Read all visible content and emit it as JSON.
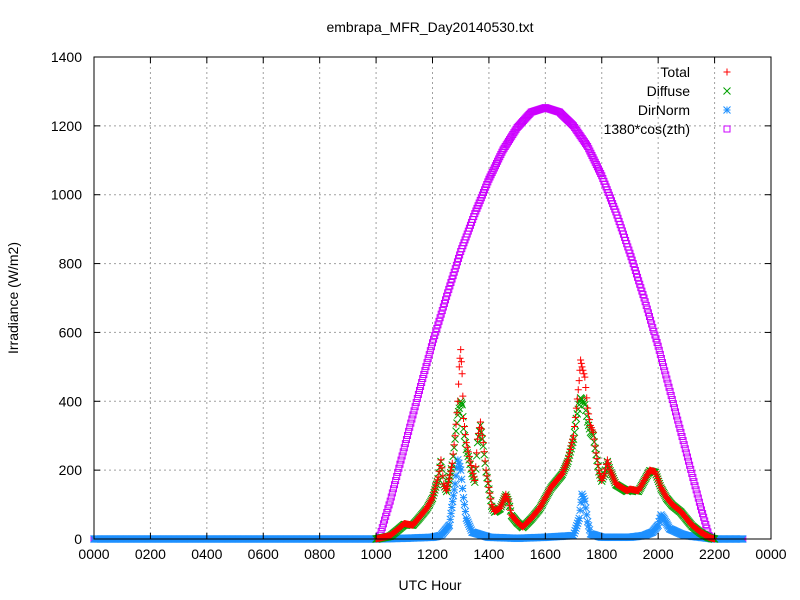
{
  "chart_data": {
    "type": "scatter",
    "title": "embrapa_MFR_Day20140530.txt",
    "xlabel": "UTC Hour",
    "ylabel": "Irradiance (W/m2)",
    "xlim": [
      0,
      2400
    ],
    "ylim": [
      0,
      1400
    ],
    "x_ticks": [
      "0000",
      "0200",
      "0400",
      "0600",
      "0800",
      "1000",
      "1200",
      "1400",
      "1600",
      "1800",
      "2000",
      "2200",
      "0000"
    ],
    "y_ticks": [
      "0",
      "200",
      "400",
      "600",
      "800",
      "1000",
      "1200",
      "1400"
    ],
    "grid": true,
    "legend_position": "top-right",
    "series": [
      {
        "name": "Total",
        "marker": "plus",
        "color": "#ff0000",
        "points": [
          [
            1000,
            0
          ],
          [
            1050,
            10
          ],
          [
            1080,
            30
          ],
          [
            1100,
            45
          ],
          [
            1130,
            40
          ],
          [
            1150,
            60
          ],
          [
            1180,
            90
          ],
          [
            1200,
            120
          ],
          [
            1220,
            180
          ],
          [
            1230,
            230
          ],
          [
            1240,
            160
          ],
          [
            1250,
            140
          ],
          [
            1270,
            220
          ],
          [
            1280,
            300
          ],
          [
            1290,
            400
          ],
          [
            1295,
            500
          ],
          [
            1300,
            550
          ],
          [
            1305,
            480
          ],
          [
            1310,
            350
          ],
          [
            1320,
            280
          ],
          [
            1330,
            240
          ],
          [
            1340,
            200
          ],
          [
            1350,
            170
          ],
          [
            1360,
            290
          ],
          [
            1370,
            340
          ],
          [
            1380,
            280
          ],
          [
            1390,
            200
          ],
          [
            1400,
            150
          ],
          [
            1410,
            100
          ],
          [
            1420,
            80
          ],
          [
            1440,
            90
          ],
          [
            1460,
            130
          ],
          [
            1470,
            110
          ],
          [
            1480,
            70
          ],
          [
            1500,
            50
          ],
          [
            1520,
            35
          ],
          [
            1550,
            60
          ],
          [
            1580,
            90
          ],
          [
            1600,
            120
          ],
          [
            1620,
            150
          ],
          [
            1640,
            170
          ],
          [
            1660,
            190
          ],
          [
            1680,
            230
          ],
          [
            1700,
            300
          ],
          [
            1710,
            380
          ],
          [
            1720,
            460
          ],
          [
            1725,
            520
          ],
          [
            1730,
            500
          ],
          [
            1740,
            470
          ],
          [
            1750,
            380
          ],
          [
            1760,
            330
          ],
          [
            1770,
            310
          ],
          [
            1780,
            250
          ],
          [
            1790,
            200
          ],
          [
            1800,
            170
          ],
          [
            1810,
            190
          ],
          [
            1820,
            230
          ],
          [
            1830,
            200
          ],
          [
            1850,
            160
          ],
          [
            1870,
            150
          ],
          [
            1890,
            140
          ],
          [
            1900,
            145
          ],
          [
            1930,
            140
          ],
          [
            1950,
            170
          ],
          [
            1970,
            200
          ],
          [
            1990,
            195
          ],
          [
            2010,
            150
          ],
          [
            2030,
            120
          ],
          [
            2050,
            100
          ],
          [
            2080,
            80
          ],
          [
            2100,
            60
          ],
          [
            2120,
            40
          ],
          [
            2150,
            20
          ],
          [
            2180,
            5
          ],
          [
            2200,
            0
          ]
        ]
      },
      {
        "name": "Diffuse",
        "marker": "cross",
        "color": "#00a000",
        "points": [
          [
            1000,
            0
          ],
          [
            1050,
            8
          ],
          [
            1080,
            28
          ],
          [
            1100,
            42
          ],
          [
            1130,
            40
          ],
          [
            1150,
            58
          ],
          [
            1180,
            88
          ],
          [
            1200,
            118
          ],
          [
            1220,
            175
          ],
          [
            1230,
            225
          ],
          [
            1240,
            158
          ],
          [
            1250,
            138
          ],
          [
            1270,
            215
          ],
          [
            1280,
            290
          ],
          [
            1290,
            360
          ],
          [
            1295,
            380
          ],
          [
            1300,
            400
          ],
          [
            1305,
            390
          ],
          [
            1310,
            320
          ],
          [
            1320,
            260
          ],
          [
            1330,
            230
          ],
          [
            1340,
            190
          ],
          [
            1350,
            165
          ],
          [
            1360,
            280
          ],
          [
            1370,
            330
          ],
          [
            1380,
            270
          ],
          [
            1390,
            195
          ],
          [
            1400,
            145
          ],
          [
            1410,
            95
          ],
          [
            1420,
            78
          ],
          [
            1440,
            88
          ],
          [
            1460,
            128
          ],
          [
            1470,
            108
          ],
          [
            1480,
            68
          ],
          [
            1500,
            48
          ],
          [
            1520,
            33
          ],
          [
            1550,
            58
          ],
          [
            1580,
            88
          ],
          [
            1600,
            118
          ],
          [
            1620,
            148
          ],
          [
            1640,
            168
          ],
          [
            1660,
            188
          ],
          [
            1680,
            225
          ],
          [
            1700,
            290
          ],
          [
            1710,
            350
          ],
          [
            1720,
            390
          ],
          [
            1725,
            410
          ],
          [
            1730,
            405
          ],
          [
            1740,
            390
          ],
          [
            1750,
            340
          ],
          [
            1760,
            310
          ],
          [
            1770,
            300
          ],
          [
            1780,
            245
          ],
          [
            1790,
            195
          ],
          [
            1800,
            168
          ],
          [
            1810,
            188
          ],
          [
            1820,
            225
          ],
          [
            1830,
            198
          ],
          [
            1850,
            158
          ],
          [
            1870,
            148
          ],
          [
            1890,
            138
          ],
          [
            1900,
            143
          ],
          [
            1930,
            138
          ],
          [
            1950,
            168
          ],
          [
            1970,
            198
          ],
          [
            1990,
            193
          ],
          [
            2010,
            148
          ],
          [
            2030,
            118
          ],
          [
            2050,
            98
          ],
          [
            2080,
            78
          ],
          [
            2100,
            58
          ],
          [
            2120,
            38
          ],
          [
            2150,
            18
          ],
          [
            2180,
            4
          ],
          [
            2200,
            0
          ]
        ]
      },
      {
        "name": "DirNorm",
        "marker": "star",
        "color": "#1e90ff",
        "points": [
          [
            0,
            0
          ],
          [
            200,
            0
          ],
          [
            400,
            0
          ],
          [
            600,
            0
          ],
          [
            800,
            0
          ],
          [
            1000,
            0
          ],
          [
            1100,
            2
          ],
          [
            1200,
            5
          ],
          [
            1230,
            10
          ],
          [
            1260,
            40
          ],
          [
            1280,
            160
          ],
          [
            1290,
            230
          ],
          [
            1300,
            200
          ],
          [
            1310,
            120
          ],
          [
            1320,
            60
          ],
          [
            1340,
            20
          ],
          [
            1400,
            5
          ],
          [
            1500,
            2
          ],
          [
            1600,
            5
          ],
          [
            1700,
            10
          ],
          [
            1720,
            60
          ],
          [
            1730,
            130
          ],
          [
            1740,
            110
          ],
          [
            1750,
            50
          ],
          [
            1760,
            15
          ],
          [
            1800,
            5
          ],
          [
            1900,
            5
          ],
          [
            1950,
            10
          ],
          [
            1980,
            20
          ],
          [
            2000,
            40
          ],
          [
            2010,
            70
          ],
          [
            2020,
            60
          ],
          [
            2040,
            30
          ],
          [
            2080,
            15
          ],
          [
            2100,
            10
          ],
          [
            2150,
            5
          ],
          [
            2200,
            0
          ],
          [
            2300,
            0
          ]
        ]
      },
      {
        "name": "1380*cos(zth)",
        "marker": "square",
        "color": "#cc00ff",
        "points": [
          [
            0,
            0
          ],
          [
            100,
            0
          ],
          [
            200,
            0
          ],
          [
            300,
            0
          ],
          [
            400,
            0
          ],
          [
            500,
            0
          ],
          [
            600,
            0
          ],
          [
            700,
            0
          ],
          [
            800,
            0
          ],
          [
            900,
            0
          ],
          [
            1000,
            0
          ],
          [
            1010,
            0
          ],
          [
            1050,
            110
          ],
          [
            1100,
            265
          ],
          [
            1150,
            420
          ],
          [
            1200,
            570
          ],
          [
            1250,
            705
          ],
          [
            1300,
            835
          ],
          [
            1350,
            945
          ],
          [
            1400,
            1045
          ],
          [
            1450,
            1130
          ],
          [
            1500,
            1195
          ],
          [
            1550,
            1240
          ],
          [
            1600,
            1253
          ],
          [
            1650,
            1240
          ],
          [
            1700,
            1200
          ],
          [
            1750,
            1140
          ],
          [
            1800,
            1055
          ],
          [
            1850,
            950
          ],
          [
            1900,
            830
          ],
          [
            1950,
            700
          ],
          [
            2000,
            560
          ],
          [
            2050,
            405
          ],
          [
            2100,
            250
          ],
          [
            2150,
            95
          ],
          [
            2180,
            10
          ],
          [
            2190,
            0
          ],
          [
            2200,
            0
          ],
          [
            2300,
            0
          ]
        ]
      }
    ]
  }
}
